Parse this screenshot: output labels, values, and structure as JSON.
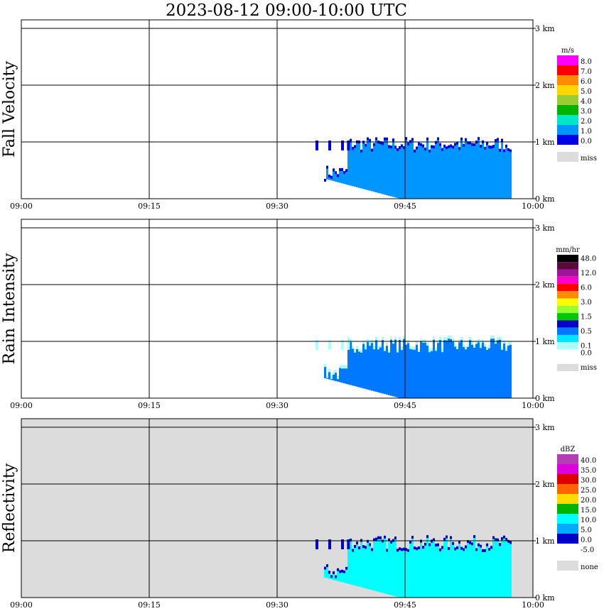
{
  "title": "2023-08-12   09:00-10:00 UTC",
  "x_ticks": [
    "09:00",
    "09:15",
    "09:30",
    "09:45",
    "10:00"
  ],
  "y_ticks": [
    "0 km",
    "1 km",
    "2 km",
    "3 km"
  ],
  "chart_data": [
    {
      "type": "heatmap",
      "panel_label": "Fall Velocity",
      "unit": "m/s",
      "background": "#ffffff",
      "x_range": [
        "09:00",
        "10:00"
      ],
      "y_range_km": [
        0,
        3.5
      ],
      "grid": true,
      "legend": [
        {
          "label": "8.0",
          "color": "#ff00ff"
        },
        {
          "label": "7.0",
          "color": "#ff0000"
        },
        {
          "label": "6.0",
          "color": "#ff8c00"
        },
        {
          "label": "5.0",
          "color": "#ffd700"
        },
        {
          "label": "4.0",
          "color": "#9acd32"
        },
        {
          "label": "3.0",
          "color": "#00b400"
        },
        {
          "label": "2.0",
          "color": "#00e6c8"
        },
        {
          "label": "1.0",
          "color": "#0096ff"
        },
        {
          "label": "0.0",
          "color": "#0000e6"
        },
        {
          "label": "miss",
          "color": "#dcdcdc"
        }
      ],
      "echo": {
        "start_min": 35.5,
        "end_min": 57.5,
        "top_km": 1.3,
        "main_color": "#0096ff",
        "edge_color": "#0000e6"
      }
    },
    {
      "type": "heatmap",
      "panel_label": "Rain Intensity",
      "unit": "mm/hr",
      "background": "#ffffff",
      "x_range": [
        "09:00",
        "10:00"
      ],
      "y_range_km": [
        0,
        3.5
      ],
      "grid": true,
      "legend": [
        {
          "label": "48.0",
          "color": "#000000"
        },
        {
          "label": "",
          "color": "#5a0a3c"
        },
        {
          "label": "12.0",
          "color": "#a0149b"
        },
        {
          "label": "",
          "color": "#ff00c8"
        },
        {
          "label": "6.0",
          "color": "#ff0000"
        },
        {
          "label": "",
          "color": "#ff8c00"
        },
        {
          "label": "3.0",
          "color": "#ffff00"
        },
        {
          "label": "",
          "color": "#96ff32"
        },
        {
          "label": "1.5",
          "color": "#00c800"
        },
        {
          "label": "",
          "color": "#0000c8"
        },
        {
          "label": "0.5",
          "color": "#0078ff"
        },
        {
          "label": "",
          "color": "#00e6ff"
        },
        {
          "label": "0.1",
          "color": "#aaffff"
        },
        {
          "label": "0.0",
          "color": "#ffffff"
        },
        {
          "label": "miss",
          "color": "#dcdcdc"
        }
      ],
      "echo": {
        "start_min": 35.5,
        "end_min": 57.5,
        "top_km": 1.25,
        "main_color": "#0078ff",
        "edge_color": "#aaffff"
      }
    },
    {
      "type": "heatmap",
      "panel_label": "Reflectivity",
      "unit": "dBZ",
      "background": "#dcdcdc",
      "x_range": [
        "09:00",
        "10:00"
      ],
      "y_range_km": [
        0,
        3.5
      ],
      "grid": true,
      "legend": [
        {
          "label": "40.0",
          "color": "#b43cb4"
        },
        {
          "label": "35.0",
          "color": "#dc00dc"
        },
        {
          "label": "30.0",
          "color": "#dc0000"
        },
        {
          "label": "25.0",
          "color": "#ff6400"
        },
        {
          "label": "20.0",
          "color": "#ffdc00"
        },
        {
          "label": "15.0",
          "color": "#00b400"
        },
        {
          "label": "10.0",
          "color": "#00ffff"
        },
        {
          "label": "5.0",
          "color": "#00aaff"
        },
        {
          "label": "0.0",
          "color": "#0000c8"
        },
        {
          "label": "-5.0",
          "color": "#ffffff"
        },
        {
          "label": "none",
          "color": "#dcdcdc"
        }
      ],
      "echo": {
        "start_min": 35.5,
        "end_min": 57.5,
        "top_km": 1.3,
        "main_color": "#00ffff",
        "edge_color": "#0000c8"
      }
    }
  ]
}
